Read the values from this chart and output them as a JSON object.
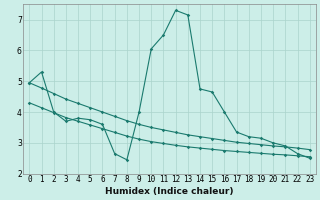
{
  "xlabel": "Humidex (Indice chaleur)",
  "background_color": "#cceee8",
  "grid_color": "#aad4cc",
  "line_color": "#1a7a6e",
  "x_ticks": [
    0,
    1,
    2,
    3,
    4,
    5,
    6,
    7,
    8,
    9,
    10,
    11,
    12,
    13,
    14,
    15,
    16,
    17,
    18,
    19,
    20,
    21,
    22,
    23
  ],
  "ylim": [
    2.0,
    7.5
  ],
  "xlim": [
    -0.5,
    23.5
  ],
  "yticks": [
    2,
    3,
    4,
    5,
    6,
    7
  ],
  "series1_x": [
    0,
    1,
    2,
    3,
    4,
    5,
    6,
    7,
    8,
    9,
    10,
    11,
    12,
    13,
    14,
    15,
    16,
    17,
    18,
    19,
    20,
    21,
    22,
    23
  ],
  "series1_y": [
    4.95,
    5.3,
    4.0,
    3.7,
    3.8,
    3.75,
    3.6,
    2.65,
    2.45,
    4.0,
    6.05,
    6.5,
    7.3,
    7.15,
    4.75,
    4.65,
    4.0,
    3.35,
    3.2,
    3.15,
    3.0,
    2.9,
    2.65,
    2.5
  ],
  "series2_x": [
    0,
    1,
    2,
    3,
    4,
    5,
    6,
    7,
    8,
    9,
    10,
    11,
    12,
    13,
    14,
    15,
    16,
    17,
    18,
    19,
    20,
    21,
    22,
    23
  ],
  "series2_y": [
    4.95,
    4.78,
    4.6,
    4.42,
    4.28,
    4.14,
    4.0,
    3.86,
    3.72,
    3.6,
    3.5,
    3.42,
    3.34,
    3.26,
    3.2,
    3.14,
    3.08,
    3.02,
    2.98,
    2.94,
    2.9,
    2.87,
    2.83,
    2.78
  ],
  "series3_x": [
    0,
    1,
    2,
    3,
    4,
    5,
    6,
    7,
    8,
    9,
    10,
    11,
    12,
    13,
    14,
    15,
    16,
    17,
    18,
    19,
    20,
    21,
    22,
    23
  ],
  "series3_y": [
    4.3,
    4.14,
    3.98,
    3.82,
    3.7,
    3.58,
    3.46,
    3.34,
    3.22,
    3.12,
    3.04,
    2.98,
    2.92,
    2.87,
    2.83,
    2.79,
    2.75,
    2.72,
    2.69,
    2.66,
    2.63,
    2.61,
    2.58,
    2.55
  ]
}
